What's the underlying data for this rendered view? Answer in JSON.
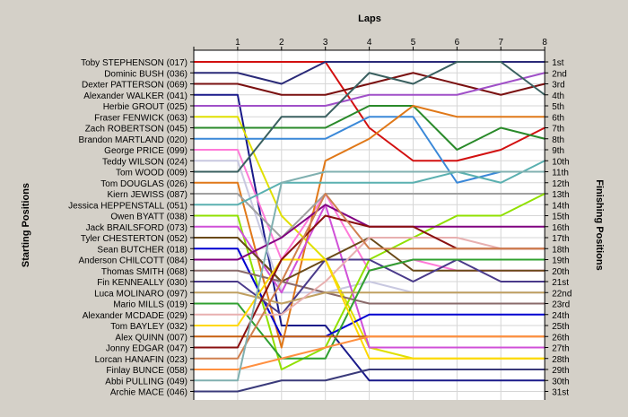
{
  "chart_data": {
    "type": "line",
    "title": "",
    "xlabel": "Laps",
    "ylabel_left": "Starting Positions",
    "ylabel_right": "Finishing Positions",
    "x_ticks": [
      "1",
      "2",
      "3",
      "4",
      "5",
      "6",
      "7",
      "8"
    ],
    "xlim": [
      0,
      8
    ],
    "ylim": [
      1,
      31
    ],
    "y_inverted": true,
    "grid": true,
    "starting_labels": [
      "Toby STEPHENSON (017)",
      "Dominic BUSH (036)",
      "Dexter PATTERSON (069)",
      "Alexander WALKER (041)",
      "Herbie GROUT (025)",
      "Fraser FENWICK (063)",
      "Zach ROBERTSON (045)",
      "Brandon MARTLAND (020)",
      "George PRICE (099)",
      "Teddy WILSON (024)",
      "Tom WOOD (009)",
      "Tom DOUGLAS (026)",
      "Kiern JEWISS (087)",
      "Jessica HEPPENSTALL (051)",
      "Owen BYATT (038)",
      "Jack BRAILSFORD (073)",
      "Tyler CHESTERTON (052)",
      "Sean BUTCHER (018)",
      "Anderson CHILCOTT (084)",
      "Thomas SMITH (068)",
      "Fin KENNEALLY (030)",
      "Luca MOLINARO (097)",
      "Mario MILLS (019)",
      "Alexander MCDADE (029)",
      "Tom BAYLEY (032)",
      "Alex QUINN (007)",
      "Jonny EDGAR (047)",
      "Lorcan HANAFIN (023)",
      "Finlay BUNCE (058)",
      "Abbi PULLING (049)",
      "Archie MACE (046)"
    ],
    "finishing_labels": [
      "1st",
      "2nd",
      "3rd",
      "4th",
      "5th",
      "6th",
      "7th",
      "8th",
      "9th",
      "10th",
      "11th",
      "12th",
      "13th",
      "14th",
      "15th",
      "16th",
      "17th",
      "18th",
      "19th",
      "20th",
      "21st",
      "22nd",
      "23rd",
      "24th",
      "25th",
      "26th",
      "27th",
      "28th",
      "29th",
      "30th",
      "31st"
    ],
    "series": [
      {
        "color": "#d21010",
        "values": [
          1,
          1,
          1,
          7,
          10,
          10,
          9,
          7
        ]
      },
      {
        "color": "#2a2a78",
        "values": [
          2,
          3,
          1,
          1,
          1,
          1,
          1,
          1
        ]
      },
      {
        "color": "#7a1010",
        "values": [
          3,
          4,
          4,
          3,
          2,
          3,
          4,
          3
        ]
      },
      {
        "color": "#1a1a8a",
        "values": [
          4,
          25,
          25,
          30,
          30,
          30,
          30,
          30
        ]
      },
      {
        "color": "#a050c8",
        "values": [
          5,
          5,
          5,
          4,
          4,
          4,
          3,
          2
        ]
      },
      {
        "color": "#e0e000",
        "values": [
          6,
          15,
          19,
          27,
          28,
          28,
          28,
          28
        ]
      },
      {
        "color": "#2a8a2a",
        "values": [
          7,
          7,
          7,
          5,
          5,
          9,
          7,
          8
        ]
      },
      {
        "color": "#3a88d8",
        "values": [
          8,
          8,
          8,
          6,
          6,
          12,
          11,
          11
        ]
      },
      {
        "color": "#ff7ad8",
        "values": [
          9,
          19,
          13,
          20,
          19,
          20,
          20,
          20
        ]
      },
      {
        "color": "#c8c8e0",
        "values": [
          10,
          22,
          22,
          21,
          22,
          22,
          22,
          22
        ]
      },
      {
        "color": "#3a6060",
        "values": [
          11,
          6,
          6,
          2,
          3,
          1,
          1,
          4
        ]
      },
      {
        "color": "#e07818",
        "values": [
          12,
          27,
          10,
          8,
          5,
          6,
          6,
          6
        ]
      },
      {
        "color": "#a0a0a0",
        "values": [
          13,
          17,
          13,
          13,
          13,
          13,
          13,
          13
        ]
      },
      {
        "color": "#5ab0b0",
        "values": [
          14,
          12,
          12,
          12,
          12,
          11,
          12,
          10
        ]
      },
      {
        "color": "#90e000",
        "values": [
          15,
          29,
          27,
          19,
          17,
          15,
          15,
          13
        ]
      },
      {
        "color": "#d050d8",
        "values": [
          16,
          22,
          14,
          27,
          27,
          27,
          27,
          27
        ]
      },
      {
        "color": "#6a4a18",
        "values": [
          17,
          21,
          19,
          17,
          20,
          20,
          20,
          20
        ]
      },
      {
        "color": "#0000d0",
        "values": [
          18,
          26,
          26,
          24,
          24,
          24,
          24,
          24
        ]
      },
      {
        "color": "#800080",
        "values": [
          19,
          17,
          14,
          16,
          16,
          16,
          16,
          16
        ]
      },
      {
        "color": "#8a6a6a",
        "values": [
          20,
          21,
          22,
          23,
          23,
          23,
          23,
          23
        ]
      },
      {
        "color": "#4a3a8a",
        "values": [
          21,
          24,
          19,
          19,
          21,
          19,
          21,
          21
        ]
      },
      {
        "color": "#c0a060",
        "values": [
          22,
          23,
          22,
          22,
          22,
          22,
          22,
          22
        ]
      },
      {
        "color": "#30a030",
        "values": [
          23,
          28,
          28,
          20,
          19,
          19,
          19,
          19
        ]
      },
      {
        "color": "#e8b0b0",
        "values": [
          24,
          24,
          21,
          17,
          17,
          17,
          18,
          18
        ]
      },
      {
        "color": "#ffd800",
        "values": [
          25,
          19,
          19,
          28,
          28,
          28,
          28,
          28
        ]
      },
      {
        "color": "#c86010",
        "values": [
          26,
          26,
          26,
          26,
          26,
          26,
          26,
          26
        ]
      },
      {
        "color": "#8a1010",
        "values": [
          27,
          19,
          15,
          16,
          16,
          18,
          18,
          18
        ]
      },
      {
        "color": "#d08050",
        "values": [
          28,
          21,
          13,
          18,
          18,
          18,
          18,
          18
        ]
      },
      {
        "color": "#ff9040",
        "values": [
          29,
          28,
          27,
          26,
          26,
          26,
          26,
          26
        ]
      },
      {
        "color": "#80b0b0",
        "values": [
          30,
          12,
          11,
          11,
          11,
          11,
          11,
          11
        ]
      },
      {
        "color": "#3a3a7a",
        "values": [
          31,
          30,
          30,
          29,
          29,
          29,
          29,
          29
        ]
      }
    ]
  }
}
